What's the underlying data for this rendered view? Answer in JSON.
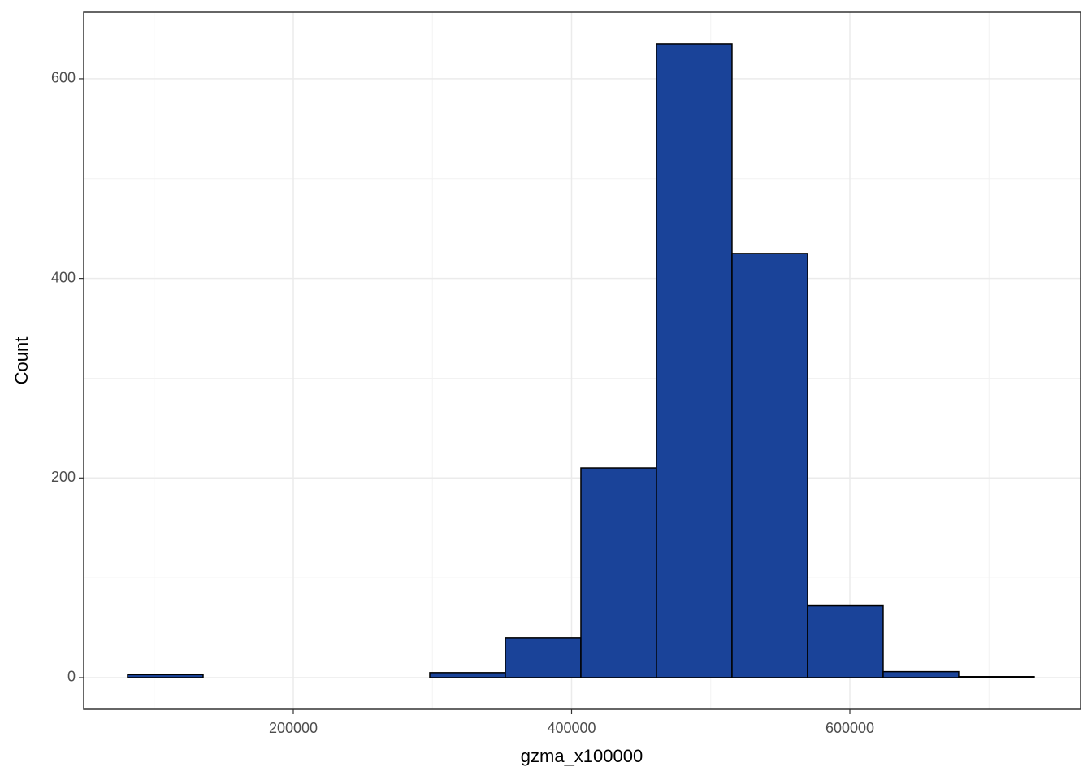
{
  "chart_data": {
    "type": "histogram",
    "x_label": "gzma_x100000",
    "y_label": "Count",
    "bins": [
      80880,
      135180,
      189490,
      243790,
      298090,
      352400,
      406700,
      461000,
      515300,
      569610,
      623910,
      678210,
      732510
    ],
    "values": [
      3,
      0,
      0,
      0,
      5,
      40,
      210,
      635,
      425,
      72,
      6,
      1
    ],
    "color": "#1a4399",
    "edge_color": "#000000",
    "xlim": [
      49350,
      765830
    ],
    "ylim": [
      -31.75,
      666.7
    ],
    "xticks": [
      200000,
      400000,
      600000
    ],
    "yticks": [
      0,
      200,
      400,
      600
    ],
    "xminor": [
      100000,
      300000,
      500000,
      700000
    ],
    "yminor": [
      100,
      300,
      500
    ],
    "grid": true
  }
}
